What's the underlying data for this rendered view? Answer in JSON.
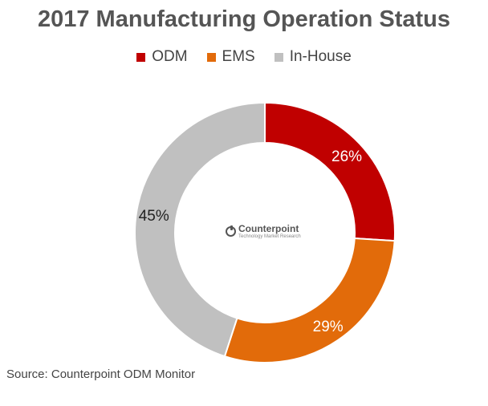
{
  "chart_data": {
    "type": "pie",
    "title": "2017 Manufacturing Operation Status",
    "categories": [
      "ODM",
      "EMS",
      "In-House"
    ],
    "values": [
      26,
      29,
      45
    ],
    "value_labels": [
      "26%",
      "29%",
      "45%"
    ],
    "colors": [
      "#c00000",
      "#e26b0a",
      "#c0c0c0"
    ],
    "label_colors": [
      "#ffffff",
      "#ffffff",
      "#222222"
    ],
    "legend_position": "top",
    "donut": true
  },
  "logo": {
    "name": "Counterpoint",
    "tagline": "Technology Market Research"
  },
  "source": "Source: Counterpoint ODM Monitor"
}
